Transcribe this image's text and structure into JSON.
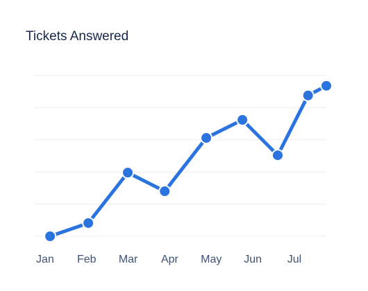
{
  "chart_data": {
    "type": "line",
    "title": "Tickets Answered",
    "x": [
      0.12,
      1.04,
      1.99,
      2.88,
      3.88,
      4.75,
      5.6,
      6.33,
      6.77
    ],
    "series": [
      {
        "color": "#2b74e0",
        "values": [
          0,
          0.41,
          1.98,
          1.4,
          3.06,
          3.62,
          2.52,
          4.38,
          4.68
        ]
      }
    ],
    "xlim": [
      -0.25,
      6.77
    ],
    "xticks": [
      {
        "value": 0,
        "label": "Jan"
      },
      {
        "value": 1,
        "label": "Feb"
      },
      {
        "value": 2,
        "label": "Mar"
      },
      {
        "value": 3,
        "label": "Apr"
      },
      {
        "value": 4,
        "label": "May"
      },
      {
        "value": 5,
        "label": "Jun"
      },
      {
        "value": 6,
        "label": "Jul"
      }
    ],
    "ylim": [
      0,
      5
    ],
    "yticks": [
      0,
      1,
      2,
      3,
      4,
      5
    ],
    "grid": true
  }
}
